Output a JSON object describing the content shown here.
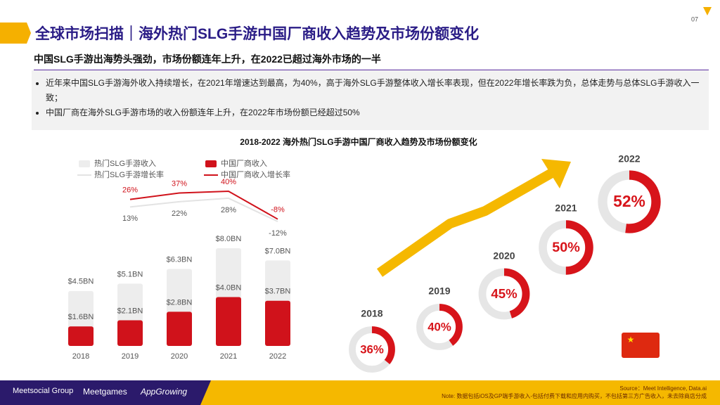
{
  "page_number": "07",
  "title": "全球市场扫描｜海外热门SLG手游中国厂商收入趋势及市场份额变化",
  "subtitle": "中国SLG手游出海势头强劲，市场份额连年上升，在2022已超过海外市场的一半",
  "bullets": [
    "近年来中国SLG手游海外收入持续增长，在2021年增速达到最高，为40%，高于海外SLG手游整体收入增长率表现，但在2022年增长率跌为负，总体走势与总体SLG手游收入一致；",
    "中国厂商在海外SLG手游市场的收入份额连年上升，在2022年市场份额已经超过50%"
  ],
  "chart_data": [
    {
      "type": "bar",
      "title": "2018-2022 海外热门SLG手游中国厂商收入趋势及市场份额变化",
      "categories": [
        "2018",
        "2019",
        "2020",
        "2021",
        "2022"
      ],
      "series": [
        {
          "name": "热门SLG手游收入",
          "color": "#ededed",
          "values": [
            4.5,
            5.1,
            6.3,
            8.0,
            7.0
          ],
          "value_labels": [
            "$4.5BN",
            "$5.1BN",
            "$6.3BN",
            "$8.0BN",
            "$7.0BN"
          ]
        },
        {
          "name": "中国厂商收入",
          "color": "#d0121b",
          "values": [
            1.6,
            2.1,
            2.8,
            4.0,
            3.7
          ],
          "value_labels": [
            "$1.6BN",
            "$2.1BN",
            "$2.8BN",
            "$4.0BN",
            "$3.7BN"
          ]
        },
        {
          "name": "热门SLG手游增长率",
          "type": "line",
          "color": "#e3e3e3",
          "values": [
            null,
            13,
            22,
            28,
            -12
          ],
          "value_labels": [
            null,
            "13%",
            "22%",
            "28%",
            "-12%"
          ]
        },
        {
          "name": "中国厂商收入增长率",
          "type": "line",
          "color": "#d0121b",
          "values": [
            null,
            26,
            37,
            40,
            -8
          ],
          "value_labels": [
            null,
            "26%",
            "37%",
            "40%",
            "-8%"
          ]
        }
      ]
    },
    {
      "type": "donut",
      "categories": [
        "2018",
        "2019",
        "2020",
        "2021",
        "2022"
      ],
      "values": [
        36,
        40,
        45,
        50,
        52
      ],
      "value_labels": [
        "36%",
        "40%",
        "45%",
        "50%",
        "52%"
      ],
      "color": "#d7141a",
      "track_color": "#e6e6e6"
    }
  ],
  "footer": {
    "source": "Source：Meet Intelligence, Data.ai",
    "note": "Note: 数据包括iOS及GP端手游收入-包括付费下载和应用内购买，不包括第三方广告收入，未去除商店分成",
    "logos": [
      "Meetsocial Group",
      "Meetgames",
      "AppGrowing"
    ]
  }
}
